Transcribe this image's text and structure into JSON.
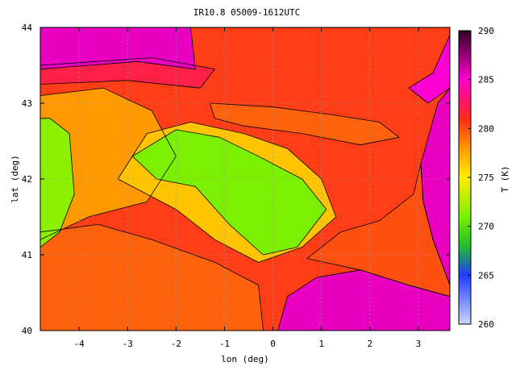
{
  "chart_data": {
    "type": "heatmap",
    "title": "IR10.8 05009-1612UTC",
    "xlabel": "lon (deg)",
    "ylabel": "lat (deg)",
    "colorbar_label": "T (K)",
    "xlim": [
      -4.8,
      3.65
    ],
    "ylim": [
      40,
      44
    ],
    "x_ticks": [
      -4,
      -3,
      -2,
      -1,
      0,
      1,
      2,
      3
    ],
    "y_ticks": [
      40,
      41,
      42,
      43,
      44
    ],
    "colorbar_range": [
      260,
      290
    ],
    "colorbar_ticks": [
      260,
      265,
      270,
      275,
      280,
      285,
      290
    ],
    "colormap_stops": [
      {
        "v": 260,
        "color": "#c8d8f8"
      },
      {
        "v": 265,
        "color": "#1f3cff"
      },
      {
        "v": 268,
        "color": "#1fbf2a"
      },
      {
        "v": 271,
        "color": "#7bf000"
      },
      {
        "v": 275,
        "color": "#ffee00"
      },
      {
        "v": 278,
        "color": "#ff9900"
      },
      {
        "v": 281,
        "color": "#ff2a1a"
      },
      {
        "v": 285,
        "color": "#ff00d2"
      },
      {
        "v": 290,
        "color": "#300020"
      }
    ],
    "grid": true,
    "regions": [
      {
        "name": "background",
        "t": 280.5,
        "pts": [
          [
            -4.8,
            40
          ],
          [
            3.65,
            40
          ],
          [
            3.65,
            44
          ],
          [
            -4.8,
            44
          ]
        ]
      },
      {
        "name": "warm-south",
        "t": 279.5,
        "pts": [
          [
            -4.8,
            40
          ],
          [
            -0.2,
            40
          ],
          [
            -0.3,
            40.6
          ],
          [
            -1.2,
            40.9
          ],
          [
            -2.5,
            41.2
          ],
          [
            -3.6,
            41.4
          ],
          [
            -4.8,
            41.3
          ]
        ]
      },
      {
        "name": "meseta-north",
        "t": 278,
        "pts": [
          [
            -4.8,
            41.2
          ],
          [
            -3.8,
            41.5
          ],
          [
            -2.6,
            41.7
          ],
          [
            -2.0,
            42.3
          ],
          [
            -2.5,
            42.9
          ],
          [
            -3.5,
            43.2
          ],
          [
            -4.8,
            43.1
          ]
        ]
      },
      {
        "name": "ebro-outer",
        "t": 276.5,
        "pts": [
          [
            -3.2,
            42.0
          ],
          [
            -2.6,
            42.6
          ],
          [
            -1.7,
            42.75
          ],
          [
            -0.6,
            42.6
          ],
          [
            0.3,
            42.4
          ],
          [
            1.0,
            42.0
          ],
          [
            1.3,
            41.5
          ],
          [
            0.6,
            41.1
          ],
          [
            -0.3,
            40.9
          ],
          [
            -1.2,
            41.2
          ],
          [
            -2.0,
            41.6
          ]
        ]
      },
      {
        "name": "ebro-basin",
        "t": 271,
        "pts": [
          [
            -2.9,
            42.3
          ],
          [
            -2.0,
            42.65
          ],
          [
            -1.1,
            42.55
          ],
          [
            -0.3,
            42.3
          ],
          [
            0.6,
            42.0
          ],
          [
            1.1,
            41.6
          ],
          [
            0.5,
            41.1
          ],
          [
            -0.2,
            41.0
          ],
          [
            -0.9,
            41.4
          ],
          [
            -1.6,
            41.9
          ],
          [
            -2.4,
            42.0
          ]
        ]
      },
      {
        "name": "west-green",
        "t": 271.5,
        "pts": [
          [
            -4.8,
            41.1
          ],
          [
            -4.4,
            41.3
          ],
          [
            -4.1,
            41.8
          ],
          [
            -4.2,
            42.6
          ],
          [
            -4.6,
            42.8
          ],
          [
            -4.8,
            42.8
          ]
        ]
      },
      {
        "name": "cantabrian-coast",
        "t": 282,
        "pts": [
          [
            -4.8,
            43.25
          ],
          [
            -3.0,
            43.3
          ],
          [
            -1.5,
            43.2
          ],
          [
            -1.2,
            43.45
          ],
          [
            -2.5,
            43.6
          ],
          [
            -4.8,
            43.5
          ]
        ]
      },
      {
        "name": "bay-of-biscay",
        "t": 285.5,
        "pts": [
          [
            -4.8,
            43.45
          ],
          [
            -2.8,
            43.55
          ],
          [
            -1.6,
            43.45
          ],
          [
            -1.7,
            44.0
          ],
          [
            -4.8,
            44.0
          ]
        ]
      },
      {
        "name": "pyrenees",
        "t": 279.5,
        "pts": [
          [
            -1.3,
            43.0
          ],
          [
            0.0,
            42.95
          ],
          [
            1.2,
            42.85
          ],
          [
            2.2,
            42.75
          ],
          [
            2.6,
            42.55
          ],
          [
            1.8,
            42.45
          ],
          [
            0.6,
            42.6
          ],
          [
            -0.6,
            42.7
          ],
          [
            -1.2,
            42.8
          ]
        ]
      },
      {
        "name": "mediterranean-east",
        "t": 285.5,
        "pts": [
          [
            3.05,
            42.2
          ],
          [
            3.4,
            43.0
          ],
          [
            3.65,
            43.2
          ],
          [
            3.65,
            40.6
          ],
          [
            3.3,
            41.2
          ],
          [
            3.1,
            41.7
          ]
        ]
      },
      {
        "name": "coastal-strip",
        "t": 280,
        "pts": [
          [
            0.7,
            40.95
          ],
          [
            1.4,
            41.3
          ],
          [
            2.2,
            41.45
          ],
          [
            2.9,
            41.8
          ],
          [
            3.05,
            42.2
          ],
          [
            3.1,
            41.7
          ],
          [
            3.3,
            41.2
          ],
          [
            3.65,
            40.6
          ],
          [
            3.65,
            40.45
          ],
          [
            2.8,
            40.6
          ],
          [
            1.8,
            40.8
          ]
        ]
      },
      {
        "name": "mediterranean-south",
        "t": 285.5,
        "pts": [
          [
            0.1,
            40.0
          ],
          [
            3.65,
            40.0
          ],
          [
            3.65,
            40.45
          ],
          [
            2.8,
            40.6
          ],
          [
            1.8,
            40.8
          ],
          [
            0.9,
            40.7
          ],
          [
            0.3,
            40.45
          ]
        ]
      },
      {
        "name": "gulf-of-lion",
        "t": 285,
        "pts": [
          [
            2.8,
            43.2
          ],
          [
            3.3,
            43.4
          ],
          [
            3.65,
            43.9
          ],
          [
            3.65,
            43.2
          ],
          [
            3.2,
            43.0
          ]
        ]
      }
    ],
    "contour_levels": [
      276,
      278,
      279,
      281
    ]
  }
}
